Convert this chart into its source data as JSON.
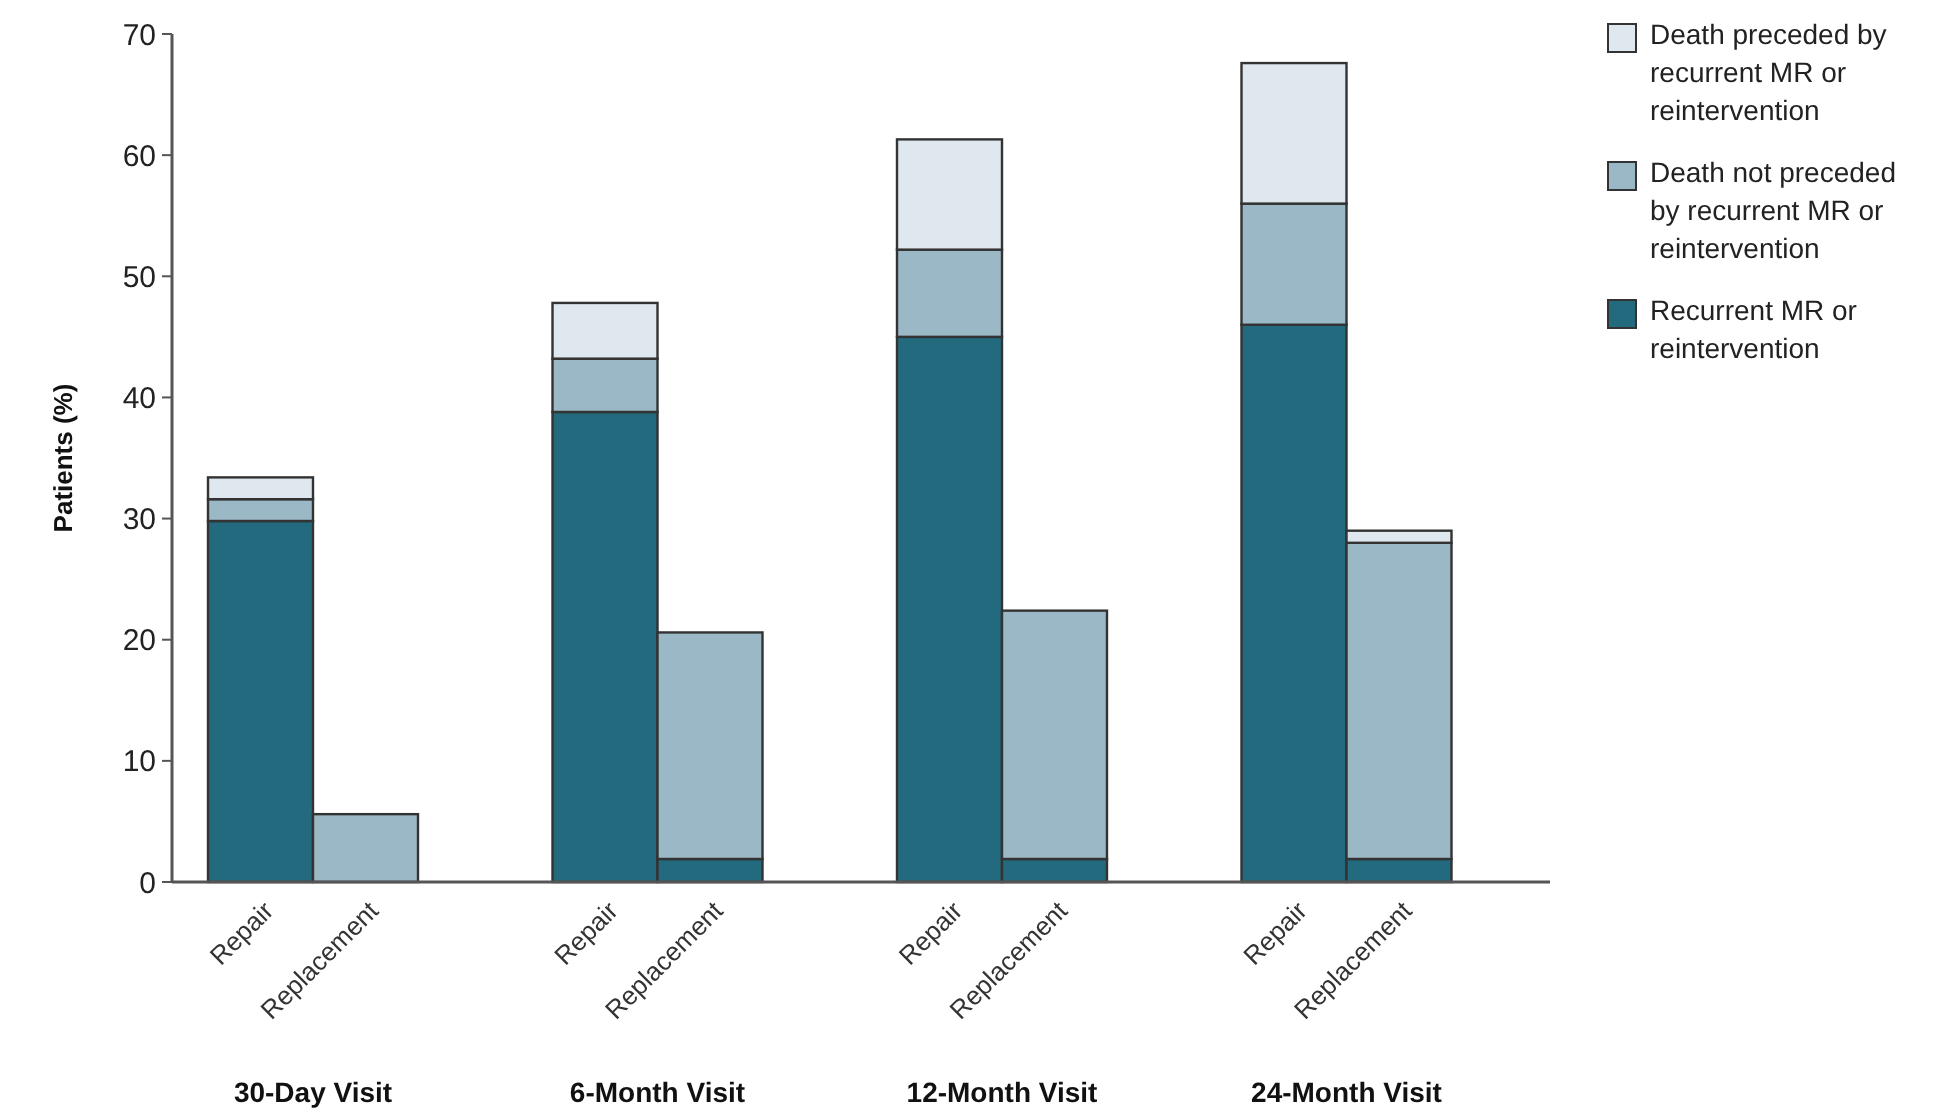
{
  "chart_data": {
    "type": "bar",
    "stacked": true,
    "ylabel": "Patients (%)",
    "categories": [
      "Repair",
      "Replacement",
      "Repair",
      "Replacement",
      "Repair",
      "Replacement",
      "Repair",
      "Replacement"
    ],
    "series": [
      {
        "name": "Recurrent MR or reintervention",
        "color": "#236a7e",
        "values": [
          29.8,
          0,
          38.8,
          1.9,
          45.0,
          1.9,
          46.0,
          1.9
        ]
      },
      {
        "name": "Death not preceded by recurrent MR or reintervention",
        "color": "#9bb8c6",
        "values": [
          1.8,
          5.6,
          4.4,
          18.7,
          7.2,
          20.5,
          10.0,
          26.1
        ]
      },
      {
        "name": "Death preceded by recurrent MR or reintervention",
        "color": "#dfe8ee",
        "values": [
          1.8,
          0,
          4.6,
          0,
          9.1,
          0,
          11.6,
          1.0
        ]
      }
    ],
    "annotations": [
      "30-Day Visit",
      "6-Month Visit",
      "12-Month Visit",
      "24-Month Visit"
    ],
    "ylim": [
      0,
      70
    ],
    "yticks": [
      0,
      10,
      20,
      30,
      40,
      50,
      60,
      70
    ],
    "grid": false,
    "legend": "top right"
  }
}
